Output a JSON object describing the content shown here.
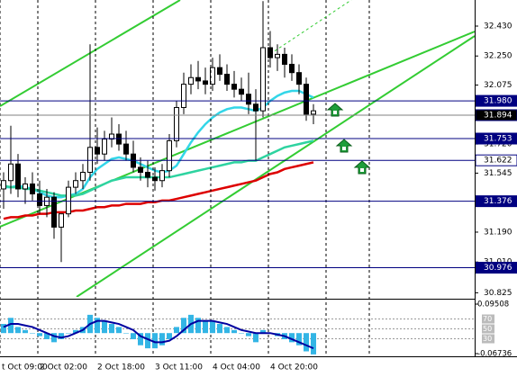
{
  "chart_data": {
    "type": "candlestick",
    "open": [
      31.45,
      31.5,
      31.6,
      31.45,
      31.48,
      31.42,
      31.35,
      31.4,
      31.22,
      31.3,
      31.46,
      31.5,
      31.55,
      31.7,
      31.66,
      31.75,
      31.78,
      31.72,
      31.66,
      31.58,
      31.55,
      31.52,
      31.5,
      31.56,
      31.74,
      31.94,
      32.08,
      32.12,
      32.1,
      32.08,
      32.18,
      32.14,
      32.08,
      32.05,
      32.02,
      31.96,
      31.92,
      32.3,
      32.24,
      32.26,
      32.2,
      32.15,
      32.08,
      31.9
    ],
    "high": [
      31.55,
      31.83,
      31.66,
      31.52,
      31.55,
      31.5,
      31.45,
      31.43,
      31.3,
      31.5,
      31.55,
      31.6,
      32.32,
      31.82,
      31.8,
      31.88,
      31.84,
      31.8,
      31.74,
      31.64,
      31.62,
      31.58,
      31.6,
      31.78,
      31.98,
      32.15,
      32.2,
      32.22,
      32.18,
      32.24,
      32.26,
      32.2,
      32.16,
      32.12,
      32.15,
      32.05,
      32.58,
      32.4,
      32.32,
      32.3,
      32.26,
      32.2,
      32.12,
      31.96
    ],
    "low": [
      31.33,
      31.42,
      31.4,
      31.36,
      31.38,
      31.3,
      31.28,
      31.15,
      31.01,
      31.28,
      31.42,
      31.45,
      31.5,
      31.6,
      31.62,
      31.7,
      31.68,
      31.62,
      31.55,
      31.5,
      31.46,
      31.44,
      31.46,
      31.52,
      31.7,
      31.9,
      32.02,
      32.05,
      32.02,
      32.04,
      32.1,
      32.04,
      32.0,
      31.98,
      31.9,
      31.62,
      31.88,
      32.18,
      32.16,
      32.12,
      32.1,
      32.02,
      31.86,
      31.84
    ],
    "close": [
      31.5,
      31.6,
      31.45,
      31.48,
      31.42,
      31.35,
      31.4,
      31.22,
      31.3,
      31.46,
      31.5,
      31.55,
      31.7,
      31.66,
      31.75,
      31.78,
      31.72,
      31.66,
      31.58,
      31.55,
      31.52,
      31.5,
      31.56,
      31.74,
      31.94,
      32.08,
      32.12,
      32.1,
      32.08,
      32.18,
      32.14,
      32.08,
      32.05,
      32.02,
      31.96,
      31.92,
      32.3,
      32.24,
      32.26,
      32.2,
      32.15,
      32.08,
      31.9,
      31.92
    ],
    "candle_color": "#000000",
    "lines": [
      {
        "color": "#33d6e8",
        "values": [
          31.46,
          31.46,
          31.47,
          31.46,
          31.45,
          31.43,
          31.41,
          31.4,
          31.4,
          31.41,
          31.42,
          31.45,
          31.52,
          31.57,
          31.6,
          31.63,
          31.64,
          31.63,
          31.62,
          31.6,
          31.58,
          31.56,
          31.55,
          31.56,
          31.59,
          31.66,
          31.73,
          31.79,
          31.84,
          31.88,
          31.91,
          31.93,
          31.94,
          31.94,
          31.93,
          31.92,
          31.94,
          31.98,
          32.01,
          32.03,
          32.04,
          32.04,
          32.02,
          32.0
        ]
      },
      {
        "color": "#2ed3a0",
        "values": [
          31.47,
          31.46,
          31.46,
          31.45,
          31.45,
          31.44,
          31.43,
          31.42,
          31.41,
          31.41,
          31.41,
          31.42,
          31.44,
          31.46,
          31.48,
          31.5,
          31.51,
          31.52,
          31.52,
          31.52,
          31.52,
          31.52,
          31.52,
          31.52,
          31.53,
          31.54,
          31.55,
          31.56,
          31.57,
          31.58,
          31.59,
          31.6,
          31.61,
          31.61,
          31.62,
          31.62,
          31.64,
          31.66,
          31.68,
          31.7,
          31.71,
          31.72,
          31.73,
          31.74
        ]
      },
      {
        "color": "#dd0000",
        "values": [
          31.27,
          31.28,
          31.28,
          31.29,
          31.29,
          31.3,
          31.3,
          31.31,
          31.31,
          31.31,
          31.32,
          31.32,
          31.33,
          31.34,
          31.34,
          31.35,
          31.35,
          31.36,
          31.36,
          31.36,
          31.37,
          31.37,
          31.38,
          31.38,
          31.39,
          31.4,
          31.41,
          31.42,
          31.43,
          31.44,
          31.45,
          31.46,
          31.47,
          31.48,
          31.49,
          31.5,
          31.52,
          31.54,
          31.55,
          31.57,
          31.58,
          31.59,
          31.6,
          31.61
        ]
      }
    ],
    "ylim": [
      30.8,
      32.587
    ],
    "yticks": [
      {
        "value": 32.43,
        "label": "32.430"
      },
      {
        "value": 32.25,
        "label": "32.250"
      },
      32.075,
      {
        "value": 31.72,
        "label": "31.720"
      },
      31.545,
      {
        "value": 31.19,
        "label": "31.190"
      },
      {
        "value": 31.01,
        "label": "31.010"
      },
      30.825
    ],
    "levels": [
      {
        "value": 31.98,
        "label": "31.980",
        "color": "#000080",
        "label_fill": "#000080",
        "label_text": "#ffffff"
      },
      {
        "value": 31.894,
        "color": "#808080",
        "label_fill": "#000000",
        "label_text": "#ffffff"
      },
      {
        "value": 31.753,
        "color": "#000080",
        "label_fill": "#000080",
        "label_text": "#ffffff"
      },
      {
        "value": 31.622,
        "color": "#000080",
        "label_fill": "#ffffff",
        "label_text": "#000000"
      },
      {
        "value": 31.376,
        "color": "#000080",
        "label_fill": "#000080",
        "label_text": "#ffffff"
      },
      {
        "value": 30.976,
        "color": "#000080",
        "label_fill": "#000080",
        "label_text": "#ffffff"
      }
    ],
    "time_labels": [
      {
        "x": -0.5,
        "label": "t Oct 09:00"
      },
      {
        "x": 4.75,
        "label": "2 Oct 02:00"
      },
      {
        "x": 12.75,
        "label": "2 Oct 18:00"
      },
      {
        "x": 20.75,
        "label": "3 Oct 11:00"
      },
      {
        "x": 28.75,
        "label": "4 Oct 04:00"
      },
      {
        "x": 36.75,
        "label": "4 Oct 20:00"
      }
    ],
    "oscillator": {
      "type": "bar",
      "color": "#33b5e5",
      "values": [
        0.03,
        0.05,
        0.02,
        0.01,
        0.0,
        -0.01,
        -0.02,
        -0.03,
        -0.02,
        0.0,
        0.01,
        0.02,
        0.06,
        0.05,
        0.04,
        0.03,
        0.02,
        0.0,
        -0.02,
        -0.04,
        -0.05,
        -0.05,
        -0.04,
        -0.02,
        0.02,
        0.05,
        0.06,
        0.05,
        0.04,
        0.04,
        0.03,
        0.02,
        0.01,
        0.0,
        -0.01,
        -0.03,
        0.01,
        0.0,
        -0.01,
        -0.02,
        -0.03,
        -0.04,
        -0.06,
        -0.07
      ],
      "signal": {
        "color": "#0000a0",
        "values": [
          0.02,
          0.03,
          0.03,
          0.025,
          0.02,
          0.01,
          0.0,
          -0.01,
          -0.015,
          -0.01,
          0.0,
          0.01,
          0.03,
          0.04,
          0.04,
          0.035,
          0.03,
          0.02,
          0.01,
          -0.01,
          -0.02,
          -0.03,
          -0.03,
          -0.025,
          -0.01,
          0.01,
          0.03,
          0.04,
          0.04,
          0.04,
          0.035,
          0.03,
          0.02,
          0.01,
          0.005,
          0.0,
          0.0,
          0.0,
          -0.005,
          -0.01,
          -0.02,
          -0.03,
          -0.04,
          -0.05
        ]
      },
      "ylim": [
        -0.06736,
        0.09508
      ],
      "yticks": [
        0.09508,
        -0.06736
      ],
      "rsi_lim": [
        0,
        100
      ],
      "rsi_ticks": [
        70,
        50,
        30
      ]
    }
  }
}
